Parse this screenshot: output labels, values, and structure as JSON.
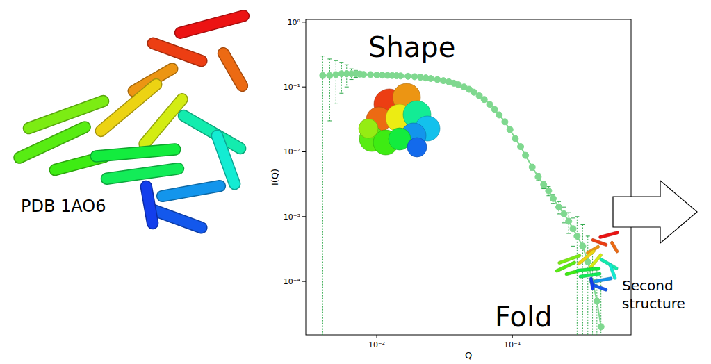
{
  "chart_data": {
    "type": "scatter",
    "x_label": "Q",
    "y_label": "I(Q)",
    "log": true,
    "xlim": [
      0.003,
      0.75
    ],
    "ylim": [
      1.5e-05,
      1.1
    ],
    "xticks": [
      {
        "value": 0.01,
        "label": "10⁻²"
      },
      {
        "value": 0.1,
        "label": "10⁻¹"
      }
    ],
    "yticks": [
      {
        "value": 0.0001,
        "label": "10⁻⁴"
      },
      {
        "value": 0.001,
        "label": "10⁻³"
      },
      {
        "value": 0.01,
        "label": "10⁻²"
      },
      {
        "value": 0.1,
        "label": "10⁻¹"
      },
      {
        "value": 1,
        "label": "10⁰"
      }
    ],
    "x": [
      0.004,
      0.0045,
      0.005,
      0.0055,
      0.006,
      0.0065,
      0.007,
      0.0075,
      0.008,
      0.009,
      0.01,
      0.011,
      0.012,
      0.013,
      0.014,
      0.015,
      0.017,
      0.019,
      0.021,
      0.023,
      0.025,
      0.028,
      0.031,
      0.034,
      0.037,
      0.04,
      0.044,
      0.048,
      0.052,
      0.057,
      0.062,
      0.068,
      0.074,
      0.08,
      0.088,
      0.096,
      0.105,
      0.115,
      0.125,
      0.14,
      0.155,
      0.17,
      0.185,
      0.2,
      0.22,
      0.24,
      0.26,
      0.28,
      0.3,
      0.33,
      0.36,
      0.39,
      0.42,
      0.45
    ],
    "series": [
      {
        "color": "#7fd88f",
        "marker": "circle",
        "line_style": "solid",
        "values": [
          0.15,
          0.15,
          0.155,
          0.16,
          0.16,
          0.16,
          0.16,
          0.158,
          0.156,
          0.155,
          0.153,
          0.152,
          0.151,
          0.15,
          0.149,
          0.148,
          0.146,
          0.144,
          0.141,
          0.138,
          0.135,
          0.13,
          0.125,
          0.12,
          0.114,
          0.108,
          0.1,
          0.092,
          0.083,
          0.073,
          0.064,
          0.054,
          0.045,
          0.037,
          0.029,
          0.022,
          0.016,
          0.012,
          0.0088,
          0.0058,
          0.0041,
          0.0031,
          0.0025,
          0.0019,
          0.0014,
          0.0011,
          0.00085,
          0.00065,
          0.0005,
          0.00035,
          0.0002,
          0.0001,
          5e-05,
          2e-05
        ],
        "errors": [
          0.15,
          0.12,
          0.1,
          0.08,
          0.06,
          0.03,
          0.02,
          0.015,
          0.01,
          0.008,
          0.006,
          0.005,
          0.005,
          0.004,
          0.004,
          0.004,
          0.003,
          0.003,
          0.003,
          0.003,
          0.003,
          0.003,
          0.003,
          0.003,
          0.003,
          0.003,
          0.003,
          0.003,
          0.003,
          0.002,
          0.002,
          0.002,
          0.002,
          0.002,
          0.001,
          0.001,
          0.001,
          0.001,
          0.0008,
          0.0006,
          0.0005,
          0.0004,
          0.0004,
          0.0003,
          0.0003,
          0.0003,
          0.0003,
          0.0003,
          0.0005,
          0.0004,
          0.0003,
          0.0002,
          0.0001,
          0.0001
        ]
      }
    ],
    "annotations": [
      "Shape",
      "Fold",
      "Second structure",
      "PDB 1AO6"
    ]
  }
}
